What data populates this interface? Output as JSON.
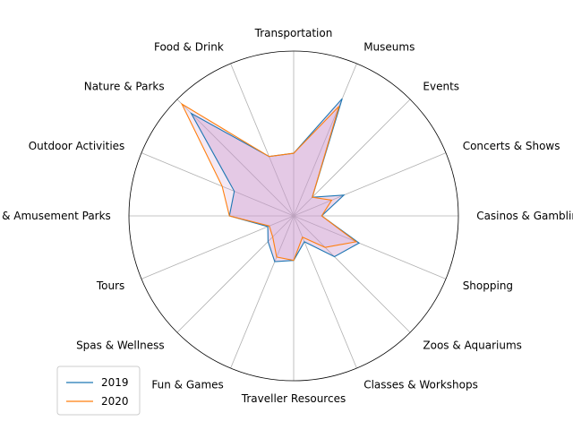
{
  "chart_data": {
    "type": "radar",
    "categories": [
      "Transportation",
      "Museums",
      "Events",
      "Concerts & Shows",
      "Casinos & Gambling",
      "Shopping",
      "Zoos & Aquariums",
      "Classes & Workshops",
      "Traveller Resources",
      "Fun & Games",
      "Spas & Wellness",
      "Tours",
      "Water & Amusement Parks",
      "Outdoor Activities",
      "Nature & Parks",
      "Food & Drink"
    ],
    "rmax": 1.0,
    "grid": true,
    "legend_position": "lower-left",
    "series": [
      {
        "name": "2019",
        "color": "#1f77b4",
        "values": [
          0.38,
          0.77,
          0.16,
          0.33,
          0.17,
          0.43,
          0.35,
          0.17,
          0.27,
          0.3,
          0.22,
          0.17,
          0.39,
          0.39,
          0.88,
          0.39
        ]
      },
      {
        "name": "2020",
        "color": "#ff7f0e",
        "fill": "#d4a6d9",
        "values": [
          0.38,
          0.72,
          0.16,
          0.25,
          0.17,
          0.41,
          0.27,
          0.14,
          0.27,
          0.27,
          0.18,
          0.16,
          0.39,
          0.47,
          0.96,
          0.39
        ]
      }
    ]
  }
}
